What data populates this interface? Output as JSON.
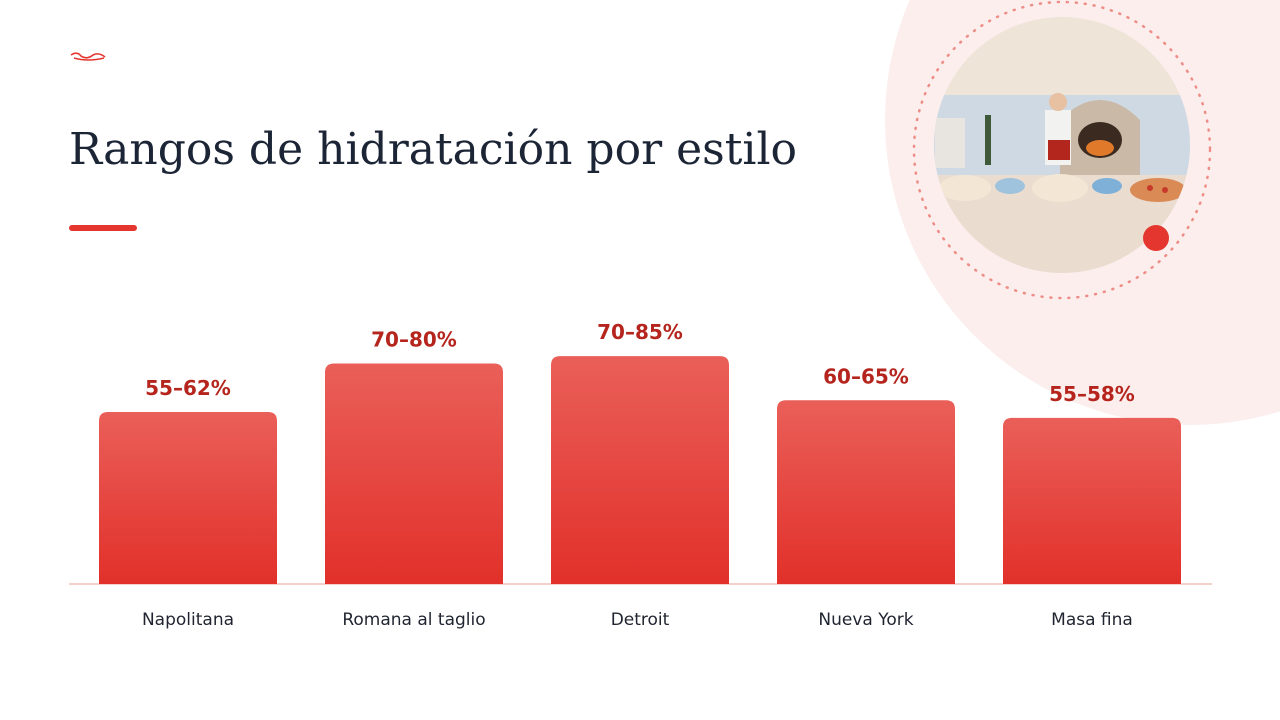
{
  "chart_data": {
    "type": "bar",
    "title": "Rangos de hidratación por estilo",
    "categories": [
      "Napolitana",
      "Romana al taglio",
      "Detroit",
      "Nueva York",
      "Masa fina"
    ],
    "values": [
      58.5,
      75,
      77.5,
      62.5,
      56.5
    ],
    "value_labels": [
      "55–62%",
      "70–80%",
      "70–85%",
      "60–65%",
      "55–58%"
    ],
    "color": "#e4352e",
    "ylim": [
      0,
      100
    ]
  }
}
